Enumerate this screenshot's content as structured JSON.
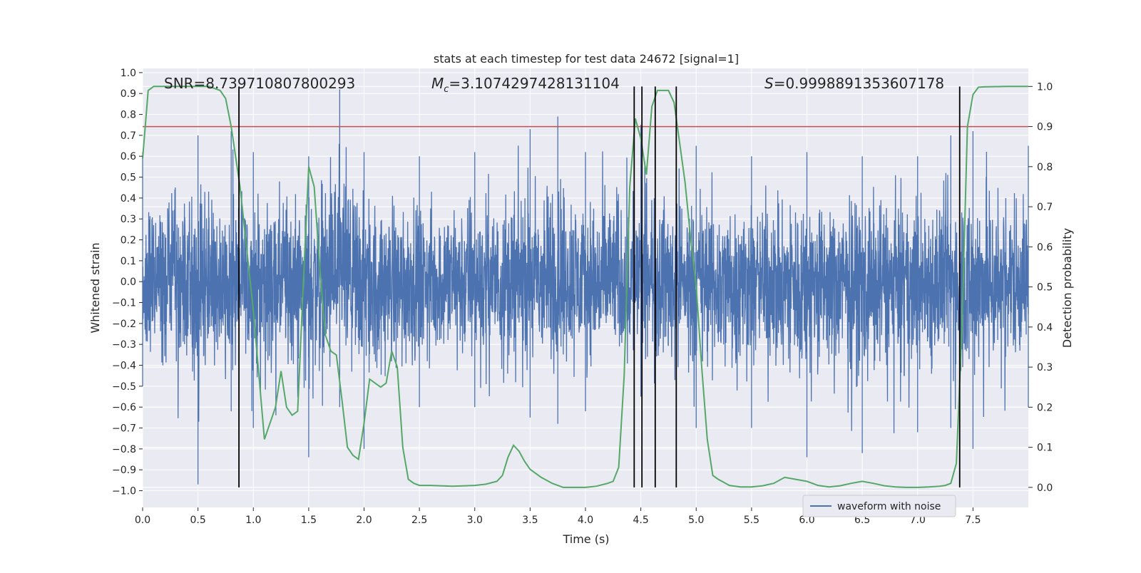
{
  "chart_data": {
    "type": "line",
    "title": "stats at each timestep for test data 24672 [signal=1]",
    "xlabel": "Time (s)",
    "ylabel_left": "Whitened strain",
    "ylabel_right": "Detection probability",
    "xlim": [
      0.0,
      8.0
    ],
    "ylim_left": [
      -1.08,
      1.02
    ],
    "ylim_right": [
      -0.05,
      1.045
    ],
    "x_ticks": [
      "0.0",
      "0.5",
      "1.0",
      "1.5",
      "2.0",
      "2.5",
      "3.0",
      "3.5",
      "4.0",
      "4.5",
      "5.0",
      "5.5",
      "6.0",
      "6.5",
      "7.0",
      "7.5"
    ],
    "y_left_ticks": [
      "1.0",
      "0.9",
      "0.8",
      "0.7",
      "0.6",
      "0.5",
      "0.4",
      "0.3",
      "0.2",
      "0.1",
      "0.0",
      "-0.1",
      "-0.2",
      "-0.3",
      "-0.4",
      "-0.5",
      "-0.6",
      "-0.7",
      "-0.8",
      "-0.9",
      "-1.0"
    ],
    "y_right_ticks": [
      "0.0",
      "0.1",
      "0.2",
      "0.3",
      "0.4",
      "0.5",
      "0.6",
      "0.7",
      "0.8",
      "0.9",
      "1.0"
    ],
    "grid": true,
    "legend_position": "lower-right",
    "legend": [
      "waveform with noise"
    ],
    "annotations": {
      "snr": "SNR=8.739710807800293",
      "mc_symbol": "M",
      "mc_sub": "c",
      "mc_value": "=3.1074297428131104",
      "s_symbol": "S",
      "s_value": "=0.9998891353607178"
    },
    "threshold_probability": 0.9,
    "vertical_markers_s": [
      0.87,
      4.44,
      4.51,
      4.63,
      4.82,
      7.38
    ],
    "colors": {
      "waveform": "#4c72b0",
      "probability": "#55a868",
      "threshold": "#c44e52",
      "markers": "#000000",
      "background": "#eaeaf2",
      "grid": "#ffffff"
    },
    "series": [
      {
        "name": "waveform with noise",
        "axis": "left",
        "envelope_time_s": [
          0.0,
          0.5,
          0.8,
          1.0,
          1.5,
          1.78,
          2.0,
          2.5,
          3.0,
          3.5,
          3.75,
          4.0,
          4.5,
          5.0,
          5.5,
          6.0,
          6.5,
          7.0,
          7.3,
          7.5,
          8.0
        ],
        "envelope_upper": [
          0.62,
          0.7,
          0.72,
          0.62,
          0.6,
          0.92,
          0.62,
          0.6,
          0.62,
          0.73,
          0.79,
          0.62,
          0.75,
          0.65,
          0.6,
          0.62,
          0.6,
          0.6,
          0.7,
          0.72,
          0.65
        ],
        "envelope_lower": [
          -0.5,
          -0.97,
          -0.62,
          -0.7,
          -0.84,
          -0.6,
          -0.8,
          -0.6,
          -0.6,
          -0.65,
          -0.68,
          -0.62,
          -0.55,
          -0.7,
          -0.7,
          -0.84,
          -0.82,
          -0.72,
          -0.7,
          -0.8,
          -0.6
        ]
      },
      {
        "name": "detection probability",
        "axis": "right",
        "time_s": [
          0.0,
          0.05,
          0.1,
          0.2,
          0.3,
          0.4,
          0.5,
          0.6,
          0.7,
          0.75,
          0.8,
          0.88,
          1.0,
          1.1,
          1.2,
          1.25,
          1.3,
          1.35,
          1.4,
          1.45,
          1.5,
          1.55,
          1.6,
          1.65,
          1.7,
          1.75,
          1.8,
          1.85,
          1.9,
          1.95,
          2.0,
          2.05,
          2.1,
          2.15,
          2.2,
          2.25,
          2.3,
          2.35,
          2.4,
          2.45,
          2.5,
          2.6,
          2.8,
          3.0,
          3.1,
          3.2,
          3.25,
          3.3,
          3.35,
          3.4,
          3.45,
          3.5,
          3.55,
          3.6,
          3.7,
          3.8,
          3.9,
          4.0,
          4.1,
          4.2,
          4.25,
          4.3,
          4.35,
          4.4,
          4.45,
          4.5,
          4.55,
          4.6,
          4.65,
          4.7,
          4.75,
          4.8,
          4.85,
          4.9,
          4.95,
          5.0,
          5.05,
          5.1,
          5.15,
          5.2,
          5.3,
          5.4,
          5.5,
          5.6,
          5.7,
          5.8,
          5.9,
          6.0,
          6.1,
          6.2,
          6.3,
          6.4,
          6.5,
          6.6,
          6.7,
          6.8,
          6.9,
          7.0,
          7.1,
          7.2,
          7.25,
          7.3,
          7.35,
          7.4,
          7.45,
          7.5,
          7.55,
          7.6,
          7.8,
          8.0
        ],
        "values": [
          0.82,
          0.99,
          1.0,
          1.0,
          1.0,
          1.0,
          1.0,
          1.0,
          0.99,
          0.97,
          0.9,
          0.75,
          0.44,
          0.12,
          0.2,
          0.29,
          0.2,
          0.18,
          0.19,
          0.5,
          0.8,
          0.75,
          0.55,
          0.38,
          0.34,
          0.33,
          0.22,
          0.1,
          0.08,
          0.07,
          0.16,
          0.27,
          0.26,
          0.25,
          0.26,
          0.34,
          0.3,
          0.1,
          0.02,
          0.01,
          0.005,
          0.005,
          0.003,
          0.005,
          0.008,
          0.015,
          0.03,
          0.075,
          0.105,
          0.09,
          0.065,
          0.045,
          0.035,
          0.025,
          0.01,
          0.0,
          0.0,
          0.0,
          0.003,
          0.01,
          0.015,
          0.05,
          0.28,
          0.75,
          0.92,
          0.87,
          0.78,
          0.95,
          0.99,
          0.99,
          0.99,
          0.96,
          0.86,
          0.76,
          0.62,
          0.5,
          0.3,
          0.12,
          0.03,
          0.02,
          0.005,
          0.001,
          0.001,
          0.004,
          0.01,
          0.025,
          0.02,
          0.015,
          0.005,
          0.001,
          0.004,
          0.01,
          0.015,
          0.01,
          0.004,
          0.001,
          0.0,
          0.0,
          0.001,
          0.003,
          0.005,
          0.01,
          0.06,
          0.4,
          0.9,
          0.98,
          0.998,
          0.999,
          1.0,
          1.0
        ]
      }
    ]
  }
}
